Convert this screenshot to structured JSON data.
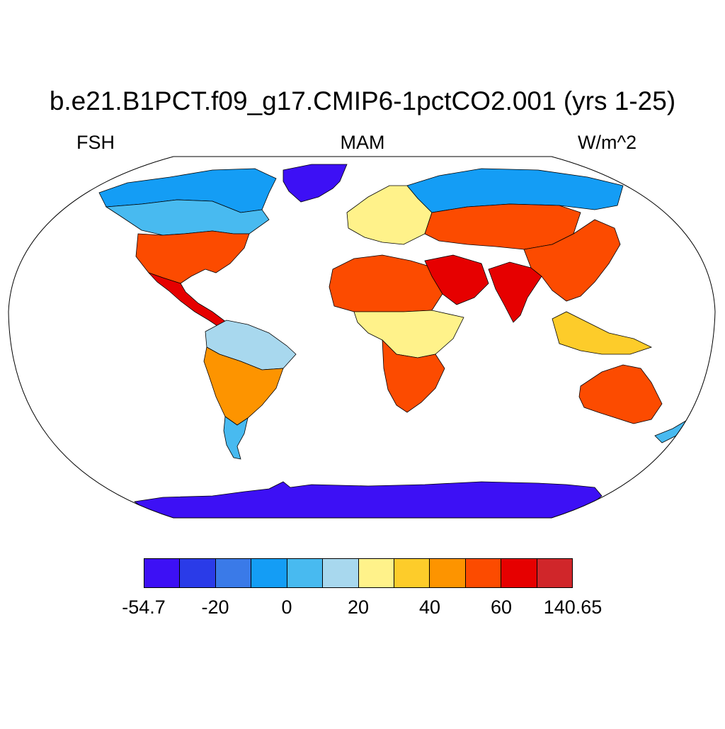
{
  "title": "b.e21.B1PCT.f09_g17.CMIP6-1pctCO2.001 (yrs 1-25)",
  "left_label": "FSH",
  "center_label": "MAM",
  "right_label": "W/m^2",
  "colorbar": {
    "colors": [
      "#3d10f5",
      "#2a3be8",
      "#3a7ae8",
      "#149df5",
      "#48baf0",
      "#a8d8ee",
      "#fff28a",
      "#fdcc2a",
      "#fd9400",
      "#fc4b00",
      "#e60000",
      "#d0262a"
    ],
    "tick_labels": [
      "-54.7",
      "-20",
      "0",
      "20",
      "40",
      "60",
      "140.65"
    ]
  },
  "chart_data": {
    "type": "heatmap",
    "projection": "Robinson",
    "variable": "FSH",
    "season": "MAM",
    "units": "W/m^2",
    "level_range": [
      -54.7,
      140.65
    ],
    "levels_labeled": [
      -54.7,
      -20,
      0,
      20,
      40,
      60,
      140.65
    ],
    "region_values": [
      {
        "region": "Antarctica",
        "value": -50
      },
      {
        "region": "Greenland",
        "value": -30
      },
      {
        "region": "Arctic coast",
        "value": 5
      },
      {
        "region": "Canada",
        "value": 15
      },
      {
        "region": "United States",
        "value": 65
      },
      {
        "region": "Mexico / Central America",
        "value": 75
      },
      {
        "region": "Amazon",
        "value": 25
      },
      {
        "region": "Southern South America",
        "value": 55
      },
      {
        "region": "Patagonia",
        "value": 15
      },
      {
        "region": "Europe",
        "value": 30
      },
      {
        "region": "Siberia",
        "value": 5
      },
      {
        "region": "Central Asia",
        "value": 60
      },
      {
        "region": "Sahara",
        "value": 62
      },
      {
        "region": "Arabia",
        "value": 75
      },
      {
        "region": "Central Africa",
        "value": 30
      },
      {
        "region": "Southern Africa",
        "value": 60
      },
      {
        "region": "India",
        "value": 70
      },
      {
        "region": "China",
        "value": 62
      },
      {
        "region": "Southeast Asia",
        "value": 40
      },
      {
        "region": "Australia",
        "value": 62
      },
      {
        "region": "New Zealand",
        "value": 15
      }
    ]
  }
}
